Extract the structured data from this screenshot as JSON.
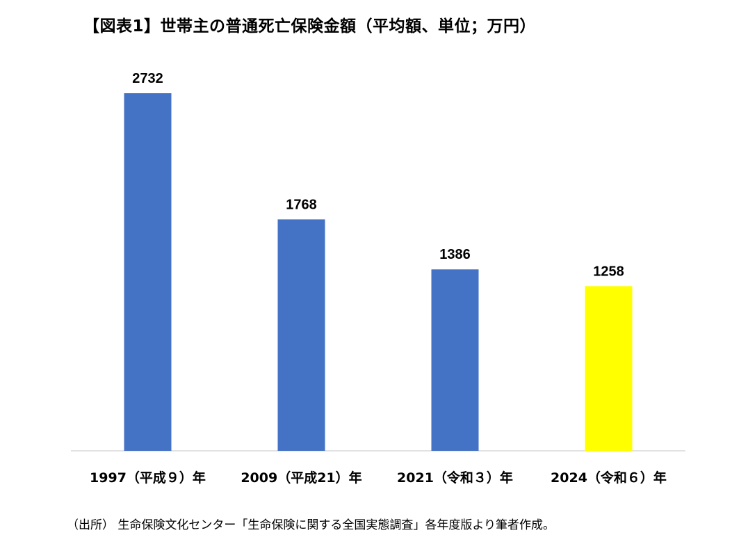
{
  "title": "【図表1】世帯主の普通死亡保険金額（平均額、単位；万円）",
  "source": "（出所） 生命保険文化センター「生命保険に関する全国実態調査」各年度版より筆者作成。",
  "colors": {
    "default_bar": "#4472C4",
    "highlight_bar": "#FFFF00",
    "axis": "#d9d9d9"
  },
  "chart_data": {
    "type": "bar",
    "categories": [
      "1997（平成９）年",
      "2009（平成21）年",
      "2021（令和３）年",
      "2024（令和６）年"
    ],
    "values": [
      2732,
      1768,
      1386,
      1258
    ],
    "highlight_index": 3,
    "ylim": [
      0,
      2732
    ],
    "grid": false,
    "legend": "none",
    "xlabel": "",
    "ylabel": ""
  }
}
